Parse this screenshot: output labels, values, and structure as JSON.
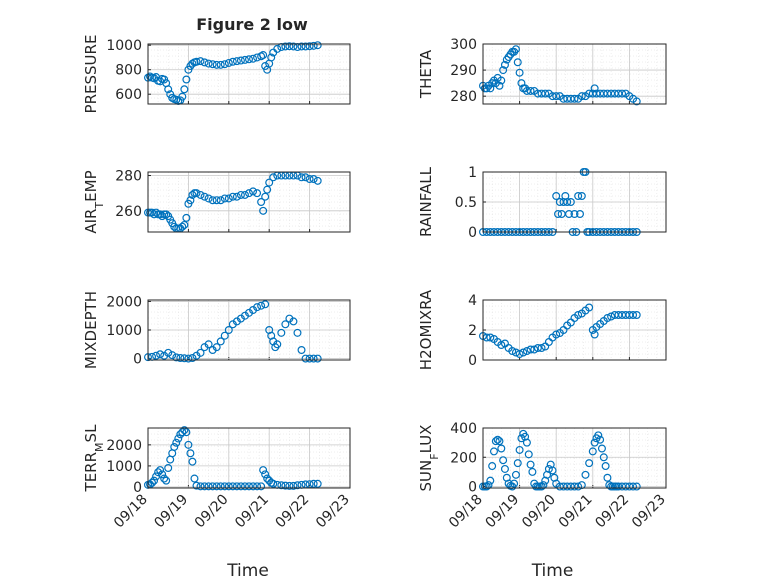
{
  "figure": {
    "title": "Figure 2 low"
  },
  "colors": {
    "marker": "#0072BD",
    "axis": "#262626",
    "grid": "#c8c8c8",
    "background": "#ffffff"
  },
  "chart_data": [
    {
      "type": "scatter",
      "marker": "circle-open",
      "grid": "on",
      "title": "Figure 2 low",
      "ylabel": "PRESSURE",
      "xlabel": "",
      "xticks": [
        "09/18",
        "09/19",
        "09/20",
        "09/21",
        "09/22",
        "09/23"
      ],
      "xtick_labels_shown": false,
      "yticks": [
        600,
        800,
        1000
      ],
      "ylim": [
        520,
        1010
      ],
      "xlim": [
        0,
        5
      ],
      "series": [
        {
          "x": [
            0.0,
            0.05,
            0.1,
            0.15,
            0.2,
            0.25,
            0.3,
            0.35,
            0.4,
            0.45,
            0.5,
            0.55,
            0.6,
            0.65,
            0.7,
            0.75,
            0.8,
            0.85,
            0.9,
            0.95,
            1.0,
            1.05,
            1.1,
            1.15,
            1.2,
            1.3,
            1.4,
            1.5,
            1.6,
            1.7,
            1.8,
            1.9,
            2.0,
            2.1,
            2.2,
            2.3,
            2.4,
            2.5,
            2.6,
            2.7,
            2.8,
            2.85,
            2.9,
            2.95,
            3.0,
            3.05,
            3.1,
            3.2,
            3.3,
            3.4,
            3.5,
            3.6,
            3.7,
            3.8,
            3.9,
            4.0,
            4.1,
            4.2
          ],
          "y": [
            735,
            745,
            735,
            730,
            740,
            710,
            705,
            725,
            720,
            690,
            640,
            600,
            570,
            560,
            555,
            545,
            550,
            580,
            640,
            720,
            800,
            830,
            850,
            860,
            865,
            870,
            860,
            850,
            845,
            840,
            840,
            845,
            855,
            865,
            870,
            875,
            880,
            885,
            890,
            900,
            910,
            920,
            830,
            800,
            850,
            900,
            940,
            970,
            985,
            990,
            992,
            990,
            985,
            990,
            990,
            992,
            995,
            1000
          ]
        }
      ]
    },
    {
      "type": "scatter",
      "marker": "circle-open",
      "grid": "on",
      "title": "",
      "ylabel": "THETA",
      "xlabel": "",
      "xticks": [
        "09/18",
        "09/19",
        "09/20",
        "09/21",
        "09/22",
        "09/23"
      ],
      "xtick_labels_shown": false,
      "yticks": [
        280,
        290,
        300
      ],
      "ylim": [
        277,
        300
      ],
      "xlim": [
        0,
        5
      ],
      "series": [
        {
          "x": [
            0.0,
            0.05,
            0.1,
            0.15,
            0.2,
            0.25,
            0.3,
            0.35,
            0.4,
            0.45,
            0.5,
            0.55,
            0.6,
            0.65,
            0.7,
            0.75,
            0.8,
            0.85,
            0.9,
            0.95,
            1.0,
            1.05,
            1.1,
            1.15,
            1.2,
            1.3,
            1.4,
            1.5,
            1.6,
            1.7,
            1.8,
            1.9,
            2.0,
            2.1,
            2.2,
            2.3,
            2.4,
            2.5,
            2.6,
            2.7,
            2.8,
            2.9,
            3.0,
            3.05,
            3.1,
            3.2,
            3.3,
            3.4,
            3.5,
            3.6,
            3.7,
            3.8,
            3.9,
            4.0,
            4.1,
            4.2
          ],
          "y": [
            284,
            283,
            283,
            284,
            283,
            285,
            286,
            285,
            287,
            284,
            286,
            290,
            292,
            294,
            295,
            296,
            297,
            297,
            298,
            293,
            289,
            285,
            283,
            283,
            282,
            282,
            282,
            281,
            281,
            281,
            281,
            280,
            280,
            280,
            279,
            279,
            279,
            279,
            279,
            280,
            280,
            281,
            281,
            283,
            281,
            281,
            281,
            281,
            281,
            281,
            281,
            281,
            281,
            280,
            279,
            278
          ]
        }
      ]
    },
    {
      "type": "scatter",
      "marker": "circle-open",
      "grid": "on",
      "title": "",
      "ylabel": "AIR_TEMP",
      "xlabel": "",
      "xticks": [
        "09/18",
        "09/19",
        "09/20",
        "09/21",
        "09/22",
        "09/23"
      ],
      "xtick_labels_shown": false,
      "yticks": [
        260,
        280
      ],
      "ylim": [
        248,
        282
      ],
      "xlim": [
        0,
        5
      ],
      "series": [
        {
          "x": [
            0.0,
            0.05,
            0.1,
            0.15,
            0.2,
            0.25,
            0.3,
            0.35,
            0.4,
            0.45,
            0.5,
            0.55,
            0.6,
            0.65,
            0.7,
            0.75,
            0.8,
            0.85,
            0.9,
            0.95,
            1.0,
            1.05,
            1.1,
            1.15,
            1.2,
            1.3,
            1.4,
            1.5,
            1.6,
            1.7,
            1.8,
            1.9,
            2.0,
            2.1,
            2.2,
            2.3,
            2.4,
            2.5,
            2.6,
            2.7,
            2.8,
            2.85,
            2.9,
            2.95,
            3.0,
            3.1,
            3.2,
            3.3,
            3.4,
            3.5,
            3.6,
            3.7,
            3.8,
            3.9,
            4.0,
            4.1,
            4.2
          ],
          "y": [
            259,
            259,
            259,
            258,
            259,
            258,
            258,
            257,
            258,
            258,
            257,
            255,
            253,
            251,
            250,
            250,
            250,
            251,
            252,
            256,
            264,
            266,
            269,
            270,
            270,
            269,
            268,
            267,
            266,
            266,
            266,
            267,
            267,
            268,
            268,
            269,
            269,
            270,
            271,
            270,
            265,
            260,
            268,
            272,
            276,
            279,
            280,
            280,
            280,
            280,
            280,
            280,
            279,
            279,
            278,
            278,
            277
          ]
        }
      ]
    },
    {
      "type": "scatter",
      "marker": "circle-open",
      "grid": "on",
      "title": "",
      "ylabel": "RAINFALL",
      "xlabel": "",
      "xticks": [
        "09/18",
        "09/19",
        "09/20",
        "09/21",
        "09/22",
        "09/23"
      ],
      "xtick_labels_shown": false,
      "yticks": [
        0,
        0.5,
        1
      ],
      "ylim": [
        0,
        1
      ],
      "xlim": [
        0,
        5
      ],
      "series": [
        {
          "x": [
            0.0,
            0.1,
            0.2,
            0.3,
            0.4,
            0.5,
            0.6,
            0.7,
            0.8,
            0.9,
            1.0,
            1.1,
            1.2,
            1.3,
            1.4,
            1.5,
            1.6,
            1.7,
            1.8,
            1.9,
            2.0,
            2.05,
            2.1,
            2.15,
            2.2,
            2.25,
            2.3,
            2.35,
            2.4,
            2.45,
            2.5,
            2.55,
            2.6,
            2.65,
            2.7,
            2.75,
            2.8,
            2.85,
            2.9,
            3.0,
            3.1,
            3.2,
            3.3,
            3.4,
            3.5,
            3.6,
            3.7,
            3.8,
            3.9,
            4.0,
            4.1,
            4.2
          ],
          "y": [
            0,
            0,
            0,
            0,
            0,
            0,
            0,
            0,
            0,
            0,
            0,
            0,
            0,
            0,
            0,
            0,
            0,
            0,
            0,
            0,
            0.6,
            0.3,
            0.5,
            0.3,
            0.5,
            0.6,
            0.5,
            0.3,
            0.5,
            0,
            0.3,
            0,
            0.6,
            0.3,
            0.6,
            1,
            1,
            0,
            0,
            0,
            0,
            0,
            0,
            0,
            0,
            0,
            0,
            0,
            0,
            0,
            0,
            0
          ]
        }
      ]
    },
    {
      "type": "scatter",
      "marker": "circle-open",
      "grid": "on",
      "title": "",
      "ylabel": "MIXDEPTH",
      "xlabel": "",
      "xticks": [
        "09/18",
        "09/19",
        "09/20",
        "09/21",
        "09/22",
        "09/23"
      ],
      "xtick_labels_shown": false,
      "yticks": [
        0,
        1000,
        2000
      ],
      "ylim": [
        -50,
        2050
      ],
      "xlim": [
        0,
        5
      ],
      "series": [
        {
          "x": [
            0.0,
            0.1,
            0.2,
            0.3,
            0.4,
            0.5,
            0.6,
            0.7,
            0.8,
            0.9,
            1.0,
            1.1,
            1.2,
            1.3,
            1.4,
            1.5,
            1.6,
            1.7,
            1.8,
            1.9,
            2.0,
            2.1,
            2.2,
            2.3,
            2.4,
            2.5,
            2.6,
            2.7,
            2.8,
            2.9,
            3.0,
            3.05,
            3.1,
            3.15,
            3.2,
            3.3,
            3.4,
            3.5,
            3.6,
            3.7,
            3.8,
            3.9,
            4.0,
            4.1,
            4.2
          ],
          "y": [
            50,
            60,
            100,
            150,
            100,
            200,
            120,
            40,
            20,
            10,
            0,
            20,
            100,
            200,
            400,
            500,
            300,
            400,
            600,
            800,
            1000,
            1200,
            1300,
            1400,
            1500,
            1600,
            1700,
            1800,
            1850,
            1900,
            1000,
            800,
            600,
            400,
            500,
            900,
            1200,
            1400,
            1300,
            900,
            300,
            0,
            0,
            0,
            0
          ]
        }
      ]
    },
    {
      "type": "scatter",
      "marker": "circle-open",
      "grid": "on",
      "title": "",
      "ylabel": "H2OMIXRA",
      "xlabel": "",
      "xticks": [
        "09/18",
        "09/19",
        "09/20",
        "09/21",
        "09/22",
        "09/23"
      ],
      "xtick_labels_shown": false,
      "yticks": [
        0,
        2,
        4
      ],
      "ylim": [
        0,
        4
      ],
      "xlim": [
        0,
        5
      ],
      "series": [
        {
          "x": [
            0.0,
            0.1,
            0.2,
            0.3,
            0.4,
            0.5,
            0.6,
            0.7,
            0.8,
            0.9,
            1.0,
            1.1,
            1.2,
            1.3,
            1.4,
            1.5,
            1.6,
            1.7,
            1.8,
            1.9,
            2.0,
            2.1,
            2.2,
            2.3,
            2.4,
            2.5,
            2.6,
            2.7,
            2.8,
            2.9,
            3.0,
            3.05,
            3.1,
            3.2,
            3.3,
            3.4,
            3.5,
            3.6,
            3.7,
            3.8,
            3.9,
            4.0,
            4.1,
            4.2
          ],
          "y": [
            1.6,
            1.5,
            1.5,
            1.4,
            1.2,
            1.0,
            1.1,
            0.8,
            0.6,
            0.5,
            0.4,
            0.5,
            0.6,
            0.7,
            0.7,
            0.8,
            0.8,
            0.9,
            1.2,
            1.5,
            1.7,
            1.8,
            2.0,
            2.3,
            2.5,
            2.8,
            3.0,
            3.1,
            3.3,
            3.5,
            2.0,
            1.7,
            2.2,
            2.4,
            2.6,
            2.8,
            2.9,
            3.0,
            3.0,
            3.0,
            3.0,
            3.0,
            3.0,
            3.0
          ]
        }
      ]
    },
    {
      "type": "scatter",
      "marker": "circle-open",
      "grid": "on",
      "title": "",
      "ylabel": "TERR_MSL",
      "xlabel": "Time",
      "xticks": [
        "09/18",
        "09/19",
        "09/20",
        "09/21",
        "09/22",
        "09/23"
      ],
      "xtick_labels_shown": true,
      "yticks": [
        0,
        1000,
        2000
      ],
      "ylim": [
        -50,
        2800
      ],
      "xlim": [
        0,
        5
      ],
      "series": [
        {
          "x": [
            0.0,
            0.05,
            0.1,
            0.15,
            0.2,
            0.25,
            0.3,
            0.35,
            0.4,
            0.45,
            0.5,
            0.55,
            0.6,
            0.65,
            0.7,
            0.75,
            0.8,
            0.85,
            0.9,
            0.95,
            1.0,
            1.05,
            1.1,
            1.15,
            1.2,
            1.3,
            1.4,
            1.5,
            1.6,
            1.7,
            1.8,
            1.9,
            2.0,
            2.1,
            2.2,
            2.3,
            2.4,
            2.5,
            2.6,
            2.7,
            2.8,
            2.85,
            2.9,
            2.95,
            3.0,
            3.05,
            3.1,
            3.2,
            3.3,
            3.4,
            3.5,
            3.6,
            3.7,
            3.8,
            3.9,
            4.0,
            4.1,
            4.2
          ],
          "y": [
            100,
            120,
            200,
            300,
            500,
            700,
            800,
            600,
            400,
            300,
            900,
            1300,
            1600,
            1900,
            2100,
            2300,
            2500,
            2600,
            2700,
            2600,
            2000,
            1600,
            1200,
            400,
            60,
            30,
            30,
            30,
            30,
            30,
            30,
            30,
            30,
            30,
            30,
            30,
            30,
            30,
            30,
            30,
            30,
            800,
            600,
            400,
            300,
            200,
            150,
            100,
            80,
            60,
            50,
            50,
            80,
            100,
            120,
            130,
            150,
            150
          ]
        }
      ]
    },
    {
      "type": "scatter",
      "marker": "circle-open",
      "grid": "on",
      "title": "",
      "ylabel": "SUN_FLUX",
      "xlabel": "Time",
      "xticks": [
        "09/18",
        "09/19",
        "09/20",
        "09/21",
        "09/22",
        "09/23"
      ],
      "xtick_labels_shown": true,
      "yticks": [
        0,
        200,
        400
      ],
      "ylim": [
        -10,
        400
      ],
      "xlim": [
        0,
        5
      ],
      "series": [
        {
          "x": [
            0.0,
            0.05,
            0.1,
            0.15,
            0.2,
            0.25,
            0.3,
            0.35,
            0.4,
            0.45,
            0.5,
            0.55,
            0.6,
            0.65,
            0.7,
            0.75,
            0.8,
            0.85,
            0.9,
            0.95,
            1.0,
            1.05,
            1.1,
            1.15,
            1.2,
            1.25,
            1.3,
            1.35,
            1.4,
            1.45,
            1.5,
            1.55,
            1.6,
            1.65,
            1.7,
            1.75,
            1.8,
            1.85,
            1.9,
            1.95,
            2.0,
            2.1,
            2.2,
            2.3,
            2.4,
            2.5,
            2.6,
            2.7,
            2.8,
            2.9,
            3.0,
            3.05,
            3.1,
            3.15,
            3.2,
            3.25,
            3.3,
            3.35,
            3.4,
            3.45,
            3.5,
            3.55,
            3.6,
            3.65,
            3.7,
            3.8,
            3.9,
            4.0,
            4.1,
            4.2
          ],
          "y": [
            0,
            0,
            0,
            10,
            40,
            140,
            240,
            310,
            320,
            310,
            260,
            180,
            120,
            60,
            20,
            5,
            0,
            20,
            80,
            160,
            250,
            330,
            360,
            340,
            300,
            220,
            150,
            100,
            20,
            0,
            0,
            0,
            0,
            10,
            40,
            80,
            120,
            150,
            110,
            60,
            20,
            0,
            0,
            0,
            0,
            0,
            0,
            10,
            80,
            160,
            240,
            300,
            330,
            350,
            320,
            260,
            200,
            140,
            60,
            10,
            0,
            0,
            0,
            0,
            0,
            0,
            0,
            0,
            0,
            0
          ]
        }
      ]
    }
  ]
}
